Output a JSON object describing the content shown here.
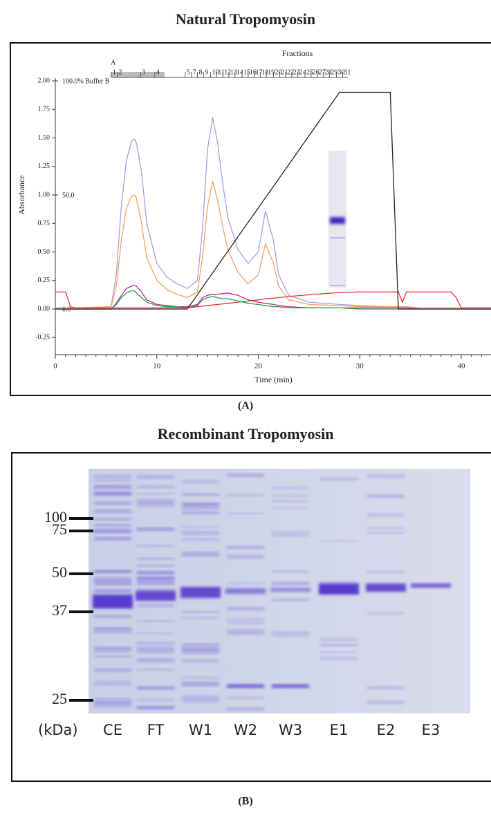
{
  "chart_data": {
    "type": "line",
    "title": "Natural Tropomyosin",
    "x_label": "Time (min)",
    "y_label": "Absorbance",
    "xlim": [
      0,
      43
    ],
    "xticks": [
      0,
      10,
      20,
      30,
      40
    ],
    "ylim": [
      -0.4,
      2.0
    ],
    "yticks": [
      {
        "value": 2.0,
        "label": "2.00"
      },
      {
        "value": 1.75,
        "label": "1.75"
      },
      {
        "value": 1.5,
        "label": "1.50"
      },
      {
        "value": 1.25,
        "label": "1.25"
      },
      {
        "value": 1.0,
        "label": "1.00"
      },
      0.75,
      {
        "value": 0.5,
        "label": "0.50"
      },
      0.25,
      {
        "value": 0.0,
        "label": "0.00"
      },
      -0.25
    ],
    "y2lim": [
      -20,
      100
    ],
    "y2ticks": [
      {
        "value": 100,
        "label": "100.0% Buffer B"
      },
      {
        "value": 50,
        "label": "50.0"
      },
      {
        "value": 0,
        "label": "0.0"
      }
    ],
    "fractions": {
      "label": "Fractions",
      "marker": "A",
      "names": [
        "1",
        "2",
        "3",
        "4",
        "5",
        "7",
        "8",
        "9",
        "10",
        "11",
        "12",
        "13",
        "14",
        "15",
        "16",
        "17",
        "18",
        "19",
        "20",
        "21",
        "22",
        "23",
        "24",
        "25",
        "26",
        "27",
        "28",
        "29",
        "30",
        "31"
      ],
      "x": [
        5.5,
        6.1,
        8.4,
        9.8,
        12.8,
        13.4,
        14.0,
        14.6,
        15.3,
        15.9,
        16.5,
        17.1,
        17.7,
        18.4,
        19.0,
        19.6,
        20.2,
        20.8,
        21.5,
        22.1,
        22.7,
        23.3,
        23.9,
        24.6,
        25.2,
        25.8,
        26.4,
        27.0,
        27.7,
        28.3
      ]
    },
    "x": [
      0,
      1,
      1.5,
      2,
      5.5,
      6,
      6.5,
      7,
      7.5,
      7.8,
      8,
      8.5,
      9,
      10,
      11,
      12,
      13,
      14,
      14.5,
      15,
      15.5,
      16,
      16.5,
      17,
      18,
      19,
      20,
      20.7,
      21.5,
      22,
      23,
      25,
      28,
      30,
      33,
      33.8,
      34.2,
      34.6,
      36,
      39,
      39.5,
      40,
      43
    ],
    "series": [
      {
        "color": "#a0a0ea",
        "values": [
          0.01,
          0.01,
          0.01,
          0.01,
          0.02,
          0.3,
          0.9,
          1.3,
          1.47,
          1.49,
          1.45,
          1.2,
          0.75,
          0.4,
          0.28,
          0.22,
          0.18,
          0.25,
          0.7,
          1.4,
          1.68,
          1.45,
          1.1,
          0.8,
          0.52,
          0.4,
          0.5,
          0.86,
          0.6,
          0.3,
          0.12,
          0.06,
          0.04,
          0.03,
          0.02,
          0.02,
          0.02,
          0.02,
          0.01,
          0.01,
          0.01,
          0.01,
          0.01
        ]
      },
      {
        "color": "#f5a060",
        "values": [
          0.01,
          0.01,
          0.01,
          0.01,
          0.02,
          0.2,
          0.6,
          0.88,
          0.99,
          1.0,
          0.97,
          0.75,
          0.45,
          0.25,
          0.17,
          0.13,
          0.1,
          0.15,
          0.45,
          0.9,
          1.12,
          0.95,
          0.72,
          0.52,
          0.32,
          0.22,
          0.3,
          0.57,
          0.4,
          0.2,
          0.08,
          0.04,
          0.03,
          0.02,
          0.02,
          0.02,
          0.02,
          0.02,
          0.01,
          0.01,
          0.01,
          0.01,
          0.01
        ]
      },
      {
        "color": "#c020a0",
        "values": [
          0,
          0,
          0,
          0,
          0,
          0.05,
          0.12,
          0.18,
          0.2,
          0.21,
          0.2,
          0.15,
          0.08,
          0.04,
          0.03,
          0.02,
          0.02,
          0.04,
          0.1,
          0.12,
          0.13,
          0.13,
          0.135,
          0.14,
          0.12,
          0.08,
          0.06,
          0.05,
          0.04,
          0.03,
          0.02,
          0.01,
          0.01,
          0.01,
          0.01,
          0.01,
          0.01,
          0.01,
          0,
          0,
          0,
          0,
          0
        ]
      },
      {
        "color": "#20a040",
        "values": [
          0,
          0,
          0,
          0,
          0,
          0.04,
          0.1,
          0.14,
          0.16,
          0.16,
          0.14,
          0.1,
          0.06,
          0.03,
          0.02,
          0.02,
          0.01,
          0.03,
          0.08,
          0.1,
          0.11,
          0.1,
          0.09,
          0.09,
          0.07,
          0.05,
          0.04,
          0.03,
          0.02,
          0.02,
          0.01,
          0.01,
          0.01,
          0,
          0,
          0,
          0,
          0,
          0,
          0,
          0,
          0,
          0
        ]
      },
      {
        "color": "#e83030",
        "values": [
          0.15,
          0.15,
          0.02,
          0.01,
          0.01,
          0.01,
          0.01,
          0.01,
          0.01,
          0.01,
          0.01,
          0.01,
          0.01,
          0.01,
          0.01,
          0.01,
          0.01,
          0.02,
          0.025,
          0.03,
          0.035,
          0.04,
          0.045,
          0.05,
          0.06,
          0.07,
          0.08,
          0.09,
          0.095,
          0.1,
          0.11,
          0.125,
          0.145,
          0.15,
          0.15,
          0.15,
          0.06,
          0.15,
          0.15,
          0.15,
          0.1,
          0.01,
          0.01
        ]
      },
      {
        "color": "#222222",
        "axis": "y2",
        "values": [
          0,
          0,
          0,
          0,
          0,
          0,
          0,
          0,
          0,
          0,
          0,
          0,
          0,
          0,
          0,
          0,
          0,
          6.3,
          9.5,
          12.7,
          15.8,
          19,
          22.2,
          25.3,
          31.7,
          38,
          44.3,
          48.8,
          53.8,
          57,
          63.3,
          76,
          95,
          95,
          95,
          0,
          0,
          0,
          0,
          0,
          0,
          0,
          0
        ]
      }
    ]
  },
  "caption_a": "(A)",
  "panel_b": {
    "title": "Recombinant Tropomyosin",
    "markers": [
      "100",
      "75",
      "50",
      "37",
      "25"
    ],
    "unit": "(kDa)",
    "lanes": [
      "CE",
      "FT",
      "W1",
      "W2",
      "W3",
      "E1",
      "E2",
      "E3"
    ],
    "caption": "(B)"
  }
}
